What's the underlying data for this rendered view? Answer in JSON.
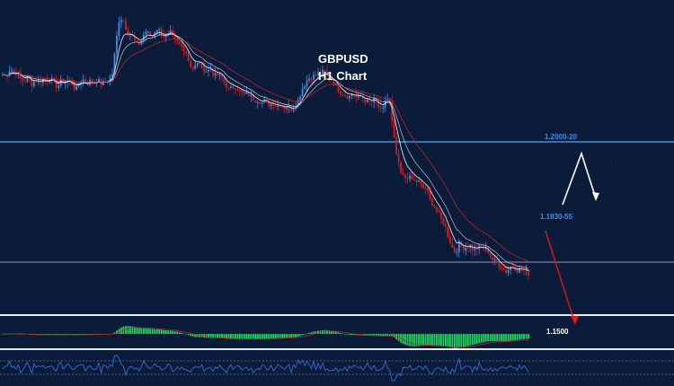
{
  "chart_data": {
    "type": "candlestick",
    "title": "GBPUSD",
    "subtitle": "H1 Chart",
    "levels": [
      {
        "label": "1.2000-20",
        "color": "#3d8ee6"
      },
      {
        "label": "1.1830-55",
        "color": "#3d8ee6"
      },
      {
        "label": "1.1500",
        "color": "#ffffff"
      }
    ],
    "close_path": [
      0.58,
      0.57,
      0.62,
      0.6,
      0.59,
      0.55,
      0.54,
      0.57,
      0.52,
      0.55,
      0.53,
      0.55,
      0.54,
      0.56,
      0.53,
      0.5,
      0.54,
      0.53,
      0.55,
      0.52,
      0.48,
      0.53,
      0.55,
      0.52,
      0.54,
      0.53,
      0.55,
      0.52,
      0.53,
      0.55,
      0.58,
      0.78,
      0.95,
      0.93,
      0.86,
      0.84,
      0.8,
      0.77,
      0.8,
      0.86,
      0.84,
      0.82,
      0.88,
      0.86,
      0.83,
      0.82,
      0.85,
      0.8,
      0.78,
      0.76,
      0.74,
      0.66,
      0.62,
      0.64,
      0.66,
      0.62,
      0.6,
      0.62,
      0.57,
      0.58,
      0.56,
      0.52,
      0.48,
      0.5,
      0.51,
      0.47,
      0.45,
      0.46,
      0.44,
      0.42,
      0.42,
      0.4,
      0.41,
      0.39,
      0.4,
      0.38,
      0.39,
      0.37,
      0.38,
      0.36,
      0.38,
      0.42,
      0.49,
      0.53,
      0.56,
      0.57,
      0.58,
      0.59,
      0.6,
      0.57,
      0.55,
      0.52,
      0.48,
      0.46,
      0.45,
      0.44,
      0.46,
      0.43,
      0.44,
      0.42,
      0.41,
      0.4,
      0.42,
      0.37,
      0.34,
      0.44,
      0.4,
      0.2,
      0.05,
      -0.05,
      -0.08,
      -0.07,
      -0.09,
      -0.1,
      -0.11,
      -0.14,
      -0.15,
      -0.22,
      -0.25,
      -0.3,
      -0.34,
      -0.37,
      -0.45,
      -0.52,
      -0.56,
      -0.5,
      -0.53,
      -0.52,
      -0.51,
      -0.54,
      -0.53,
      -0.52,
      -0.53,
      -0.55,
      -0.6,
      -0.62,
      -0.64,
      -0.66,
      -0.68,
      -0.65,
      -0.64,
      -0.67,
      -0.66,
      -0.67,
      -0.69
    ]
  },
  "colors": {
    "background": "#0b1c3a",
    "bull": "#3d8ee6",
    "bear": "#e01818",
    "ma1": "#ffffff",
    "ma2": "#c02626",
    "macd_bar": "#1ed760",
    "arrow_up": "#ffffff",
    "arrow_down": "#e01818"
  }
}
